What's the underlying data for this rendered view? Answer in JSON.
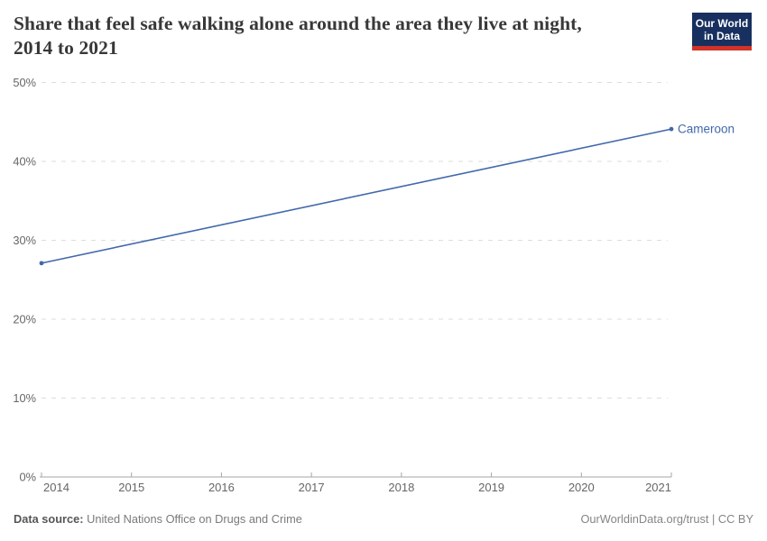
{
  "header": {
    "title_line1": "Share that feel safe walking alone around the area they live at night,",
    "title_line2": "2014 to 2021",
    "logo": {
      "line1": "Our World",
      "line2": "in Data",
      "bg_color": "#18305f",
      "bar_color": "#d13328"
    }
  },
  "footer": {
    "source_label": "Data source:",
    "source_value": "United Nations Office on Drugs and Crime",
    "credit": "OurWorldinData.org/trust | CC BY"
  },
  "chart_data": {
    "type": "line",
    "title": "Share that feel safe walking alone around the area they live at night, 2014 to 2021",
    "xlabel": "",
    "ylabel": "",
    "xlim": [
      2014,
      2021
    ],
    "ylim": [
      0,
      50
    ],
    "x_ticks": [
      2014,
      2015,
      2016,
      2017,
      2018,
      2019,
      2020,
      2021
    ],
    "x_tick_labels": [
      "2014",
      "2015",
      "2016",
      "2017",
      "2018",
      "2019",
      "2020",
      "2021"
    ],
    "y_ticks": [
      0,
      10,
      20,
      30,
      40,
      50
    ],
    "y_tick_labels": [
      "0%",
      "10%",
      "20%",
      "30%",
      "40%",
      "50%"
    ],
    "grid": "horizontal-dashed",
    "legend": "end-of-line-label",
    "series": [
      {
        "name": "Cameroon",
        "color": "#4268ab",
        "x": [
          2014,
          2021
        ],
        "values": [
          27.1,
          44.1
        ]
      }
    ]
  }
}
